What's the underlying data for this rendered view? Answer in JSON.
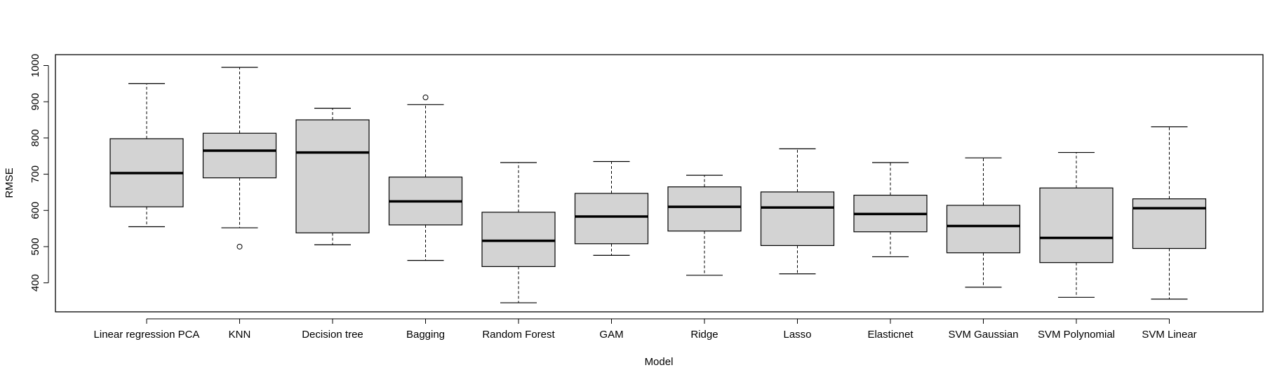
{
  "chart_data": {
    "type": "boxplot",
    "title": "",
    "xlabel": "Model",
    "ylabel": "RMSE",
    "ylim": [
      320,
      1030
    ],
    "yticks": [
      400,
      500,
      600,
      700,
      800,
      900,
      1000
    ],
    "grid": false,
    "legend": "none",
    "colors": {
      "box_fill": "#d3d3d3",
      "stroke": "#000000"
    },
    "categories": [
      "Linear regression PCA",
      "KNN",
      "Decision tree",
      "Bagging",
      "Random Forest",
      "GAM",
      "Ridge",
      "Lasso",
      "Elasticnet",
      "SVM Gaussian",
      "SVM Polynomial",
      "SVM Linear"
    ],
    "boxes": [
      {
        "min": 555,
        "q1": 610,
        "median": 703,
        "q3": 798,
        "max": 950,
        "outliers": []
      },
      {
        "min": 552,
        "q1": 690,
        "median": 765,
        "q3": 813,
        "max": 995,
        "outliers": [
          500
        ]
      },
      {
        "min": 505,
        "q1": 538,
        "median": 760,
        "q3": 850,
        "max": 882,
        "outliers": []
      },
      {
        "min": 462,
        "q1": 560,
        "median": 625,
        "q3": 692,
        "max": 892,
        "outliers": [
          912
        ]
      },
      {
        "min": 345,
        "q1": 445,
        "median": 516,
        "q3": 595,
        "max": 732,
        "outliers": []
      },
      {
        "min": 476,
        "q1": 508,
        "median": 583,
        "q3": 647,
        "max": 735,
        "outliers": []
      },
      {
        "min": 421,
        "q1": 543,
        "median": 610,
        "q3": 665,
        "max": 697,
        "outliers": []
      },
      {
        "min": 425,
        "q1": 503,
        "median": 608,
        "q3": 651,
        "max": 770,
        "outliers": []
      },
      {
        "min": 472,
        "q1": 541,
        "median": 590,
        "q3": 642,
        "max": 732,
        "outliers": []
      },
      {
        "min": 388,
        "q1": 483,
        "median": 557,
        "q3": 614,
        "max": 745,
        "outliers": []
      },
      {
        "min": 360,
        "q1": 456,
        "median": 524,
        "q3": 662,
        "max": 760,
        "outliers": []
      },
      {
        "min": 355,
        "q1": 495,
        "median": 606,
        "q3": 632,
        "max": 831,
        "outliers": []
      }
    ]
  }
}
